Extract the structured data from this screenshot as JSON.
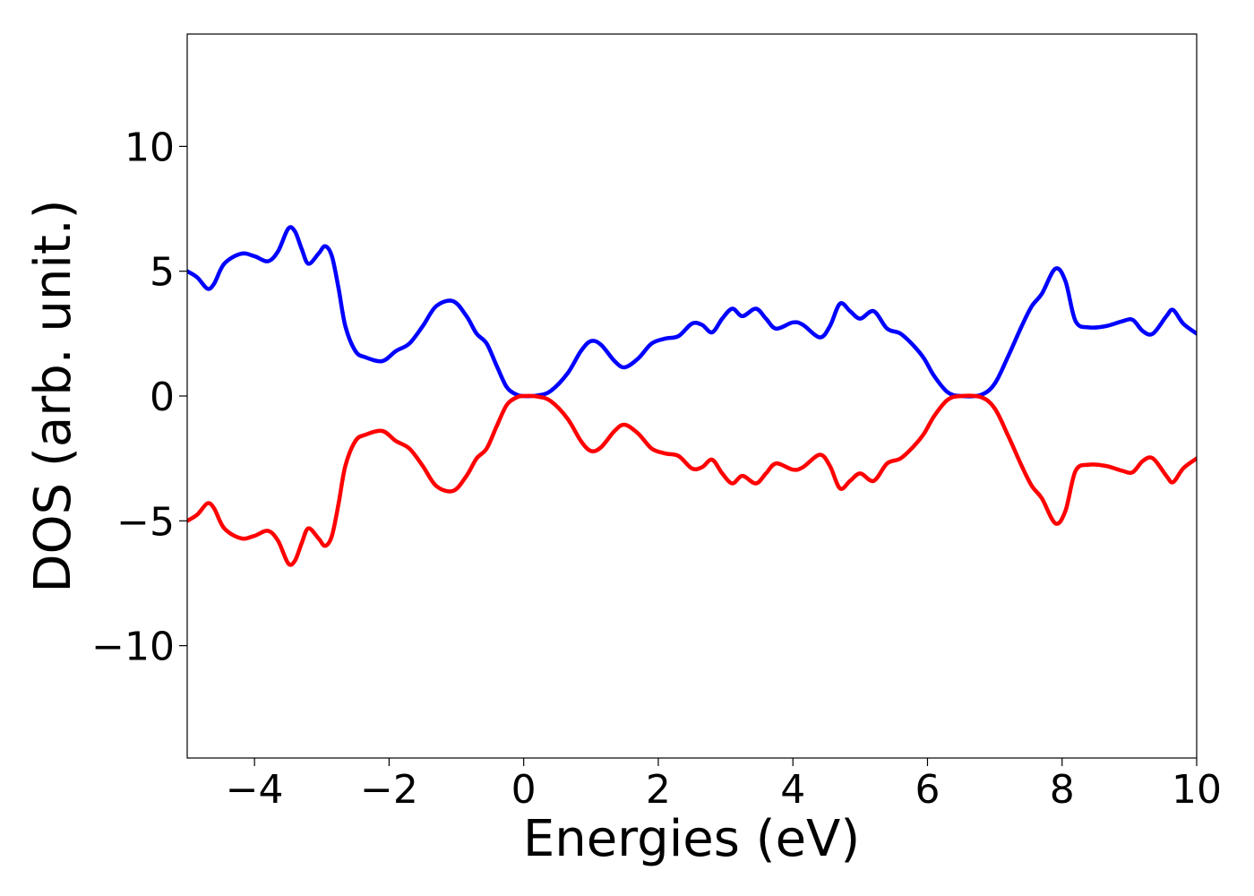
{
  "chart_data": {
    "type": "line",
    "title": "",
    "xlabel": "Energies (eV)",
    "ylabel": "DOS (arb. unit.)",
    "xlim": [
      -5,
      10
    ],
    "ylim": [
      -14.5,
      14.5
    ],
    "xticks": [
      -4,
      -2,
      0,
      2,
      4,
      6,
      8,
      10
    ],
    "xtick_labels": [
      "−4",
      "−2",
      "0",
      "2",
      "4",
      "6",
      "8",
      "10"
    ],
    "yticks": [
      -10,
      -5,
      0,
      5,
      10
    ],
    "ytick_labels": [
      "−10",
      "−5",
      "0",
      "5",
      "10"
    ],
    "grid": false,
    "legend": "none",
    "series": [
      {
        "color": "#0000ff",
        "points": [
          [
            -5.0,
            5.0
          ],
          [
            -4.85,
            4.75
          ],
          [
            -4.7,
            4.3
          ],
          [
            -4.6,
            4.5
          ],
          [
            -4.45,
            5.3
          ],
          [
            -4.2,
            5.7
          ],
          [
            -4.0,
            5.6
          ],
          [
            -3.8,
            5.4
          ],
          [
            -3.65,
            5.8
          ],
          [
            -3.5,
            6.7
          ],
          [
            -3.4,
            6.6
          ],
          [
            -3.3,
            5.9
          ],
          [
            -3.2,
            5.3
          ],
          [
            -3.05,
            5.7
          ],
          [
            -2.95,
            6.0
          ],
          [
            -2.85,
            5.6
          ],
          [
            -2.75,
            4.3
          ],
          [
            -2.65,
            2.8
          ],
          [
            -2.5,
            1.8
          ],
          [
            -2.35,
            1.55
          ],
          [
            -2.1,
            1.4
          ],
          [
            -1.9,
            1.8
          ],
          [
            -1.7,
            2.1
          ],
          [
            -1.5,
            2.8
          ],
          [
            -1.3,
            3.6
          ],
          [
            -1.05,
            3.8
          ],
          [
            -0.85,
            3.2
          ],
          [
            -0.7,
            2.5
          ],
          [
            -0.55,
            2.1
          ],
          [
            -0.4,
            1.2
          ],
          [
            -0.25,
            0.35
          ],
          [
            -0.1,
            0.05
          ],
          [
            0.0,
            0.0
          ],
          [
            0.2,
            0.02
          ],
          [
            0.4,
            0.2
          ],
          [
            0.65,
            0.9
          ],
          [
            0.85,
            1.8
          ],
          [
            1.0,
            2.2
          ],
          [
            1.15,
            2.05
          ],
          [
            1.35,
            1.4
          ],
          [
            1.5,
            1.15
          ],
          [
            1.7,
            1.5
          ],
          [
            1.9,
            2.1
          ],
          [
            2.1,
            2.3
          ],
          [
            2.3,
            2.4
          ],
          [
            2.5,
            2.9
          ],
          [
            2.65,
            2.85
          ],
          [
            2.8,
            2.55
          ],
          [
            2.95,
            3.1
          ],
          [
            3.1,
            3.5
          ],
          [
            3.25,
            3.2
          ],
          [
            3.45,
            3.5
          ],
          [
            3.6,
            3.1
          ],
          [
            3.75,
            2.7
          ],
          [
            4.0,
            2.95
          ],
          [
            4.15,
            2.85
          ],
          [
            4.4,
            2.35
          ],
          [
            4.55,
            2.8
          ],
          [
            4.7,
            3.7
          ],
          [
            4.85,
            3.4
          ],
          [
            5.0,
            3.1
          ],
          [
            5.2,
            3.4
          ],
          [
            5.4,
            2.7
          ],
          [
            5.6,
            2.5
          ],
          [
            5.8,
            2.0
          ],
          [
            5.95,
            1.5
          ],
          [
            6.1,
            0.8
          ],
          [
            6.3,
            0.15
          ],
          [
            6.5,
            0.0
          ],
          [
            6.8,
            0.05
          ],
          [
            7.0,
            0.5
          ],
          [
            7.2,
            1.6
          ],
          [
            7.4,
            2.8
          ],
          [
            7.55,
            3.6
          ],
          [
            7.7,
            4.1
          ],
          [
            7.9,
            5.1
          ],
          [
            8.05,
            4.6
          ],
          [
            8.2,
            3.0
          ],
          [
            8.4,
            2.75
          ],
          [
            8.65,
            2.8
          ],
          [
            8.9,
            3.0
          ],
          [
            9.05,
            3.05
          ],
          [
            9.2,
            2.6
          ],
          [
            9.35,
            2.5
          ],
          [
            9.55,
            3.2
          ],
          [
            9.65,
            3.45
          ],
          [
            9.8,
            2.9
          ],
          [
            10.0,
            2.5
          ]
        ]
      },
      {
        "color": "#ff0000",
        "points": [
          [
            -5.0,
            -5.0
          ],
          [
            -4.85,
            -4.75
          ],
          [
            -4.7,
            -4.3
          ],
          [
            -4.6,
            -4.5
          ],
          [
            -4.45,
            -5.3
          ],
          [
            -4.2,
            -5.7
          ],
          [
            -4.0,
            -5.6
          ],
          [
            -3.8,
            -5.4
          ],
          [
            -3.65,
            -5.8
          ],
          [
            -3.5,
            -6.7
          ],
          [
            -3.4,
            -6.6
          ],
          [
            -3.3,
            -5.9
          ],
          [
            -3.2,
            -5.3
          ],
          [
            -3.05,
            -5.7
          ],
          [
            -2.95,
            -6.0
          ],
          [
            -2.85,
            -5.6
          ],
          [
            -2.75,
            -4.3
          ],
          [
            -2.65,
            -2.8
          ],
          [
            -2.5,
            -1.8
          ],
          [
            -2.35,
            -1.55
          ],
          [
            -2.1,
            -1.4
          ],
          [
            -1.9,
            -1.8
          ],
          [
            -1.7,
            -2.1
          ],
          [
            -1.5,
            -2.8
          ],
          [
            -1.3,
            -3.6
          ],
          [
            -1.05,
            -3.8
          ],
          [
            -0.85,
            -3.2
          ],
          [
            -0.7,
            -2.5
          ],
          [
            -0.55,
            -2.1
          ],
          [
            -0.4,
            -1.2
          ],
          [
            -0.25,
            -0.35
          ],
          [
            -0.1,
            -0.05
          ],
          [
            0.0,
            0.0
          ],
          [
            0.2,
            -0.02
          ],
          [
            0.4,
            -0.2
          ],
          [
            0.65,
            -0.9
          ],
          [
            0.85,
            -1.8
          ],
          [
            1.0,
            -2.2
          ],
          [
            1.15,
            -2.05
          ],
          [
            1.35,
            -1.4
          ],
          [
            1.5,
            -1.15
          ],
          [
            1.7,
            -1.5
          ],
          [
            1.9,
            -2.1
          ],
          [
            2.1,
            -2.3
          ],
          [
            2.3,
            -2.4
          ],
          [
            2.5,
            -2.9
          ],
          [
            2.65,
            -2.85
          ],
          [
            2.8,
            -2.55
          ],
          [
            2.95,
            -3.1
          ],
          [
            3.1,
            -3.5
          ],
          [
            3.25,
            -3.2
          ],
          [
            3.45,
            -3.5
          ],
          [
            3.6,
            -3.1
          ],
          [
            3.75,
            -2.7
          ],
          [
            4.0,
            -2.95
          ],
          [
            4.15,
            -2.85
          ],
          [
            4.4,
            -2.35
          ],
          [
            4.55,
            -2.8
          ],
          [
            4.7,
            -3.7
          ],
          [
            4.85,
            -3.4
          ],
          [
            5.0,
            -3.1
          ],
          [
            5.2,
            -3.4
          ],
          [
            5.4,
            -2.7
          ],
          [
            5.6,
            -2.5
          ],
          [
            5.8,
            -2.0
          ],
          [
            5.95,
            -1.5
          ],
          [
            6.1,
            -0.8
          ],
          [
            6.3,
            -0.15
          ],
          [
            6.5,
            0.0
          ],
          [
            6.8,
            -0.05
          ],
          [
            7.0,
            -0.5
          ],
          [
            7.2,
            -1.6
          ],
          [
            7.4,
            -2.8
          ],
          [
            7.55,
            -3.6
          ],
          [
            7.7,
            -4.1
          ],
          [
            7.9,
            -5.1
          ],
          [
            8.05,
            -4.6
          ],
          [
            8.2,
            -3.0
          ],
          [
            8.4,
            -2.75
          ],
          [
            8.65,
            -2.8
          ],
          [
            8.9,
            -3.0
          ],
          [
            9.05,
            -3.05
          ],
          [
            9.2,
            -2.6
          ],
          [
            9.35,
            -2.5
          ],
          [
            9.55,
            -3.2
          ],
          [
            9.65,
            -3.45
          ],
          [
            9.8,
            -2.9
          ],
          [
            10.0,
            -2.5
          ]
        ]
      }
    ]
  }
}
